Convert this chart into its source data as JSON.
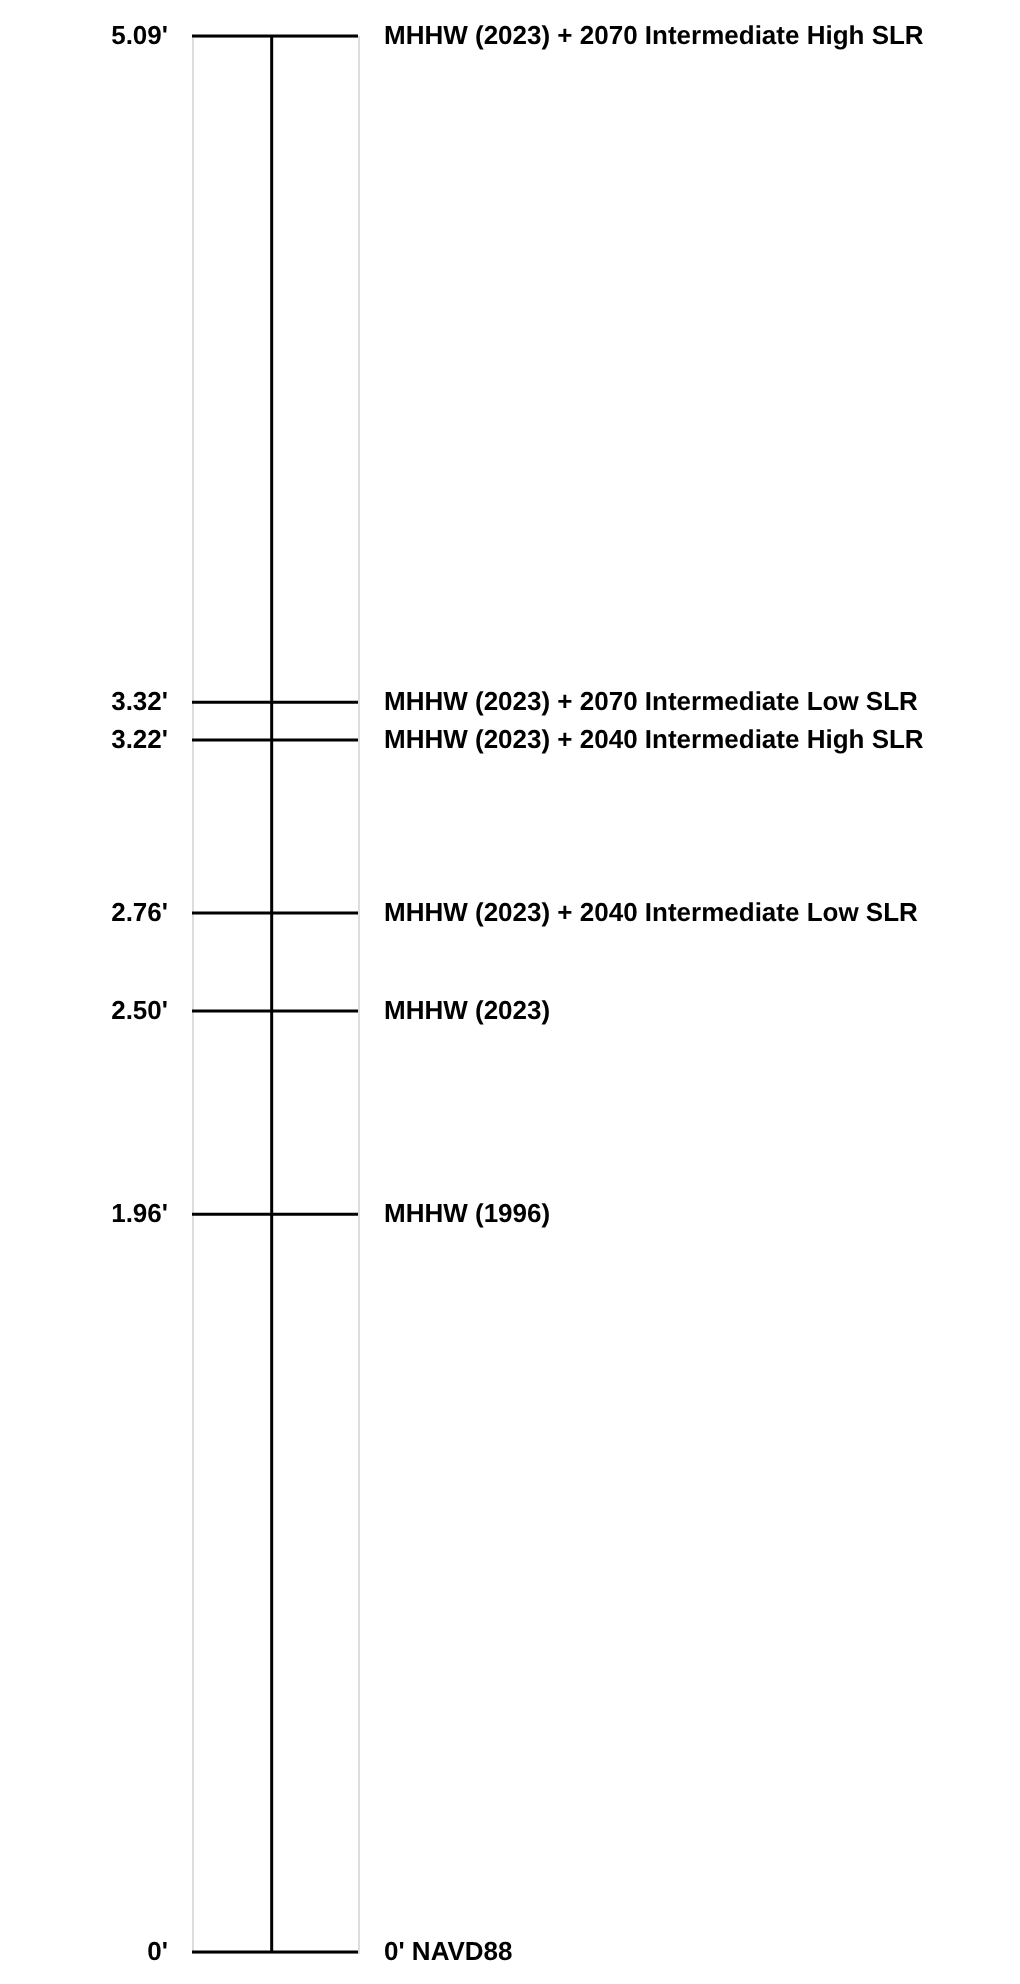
{
  "chart_data": {
    "type": "other",
    "categories": [
      "MHHW (2023) + 2070 Intermediate High SLR",
      "MHHW (2023) + 2070 Intermediate Low SLR",
      "MHHW (2023) + 2040 Intermediate High SLR",
      "MHHW (2023) + 2040 Intermediate Low SLR",
      "MHHW (2023)",
      "MHHW (1996)",
      "0' NAVD88"
    ],
    "values": [
      5.09,
      3.32,
      3.22,
      2.76,
      2.5,
      1.96,
      0
    ],
    "value_labels": [
      "5.09'",
      "3.32'",
      "3.22'",
      "2.76'",
      "2.50'",
      "1.96'",
      "0'"
    ]
  }
}
